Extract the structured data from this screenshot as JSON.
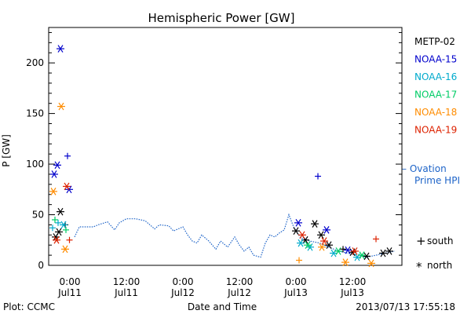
{
  "chart_data": {
    "type": "scatter",
    "title": "Hemispheric Power [GW]",
    "ylabel": "P [GW]",
    "xlabel": "Date and Time",
    "ylim": [
      0,
      235
    ],
    "xlim": [
      "2013-07-10 19:30",
      "2013-07-13 22:30"
    ],
    "yticks": [
      0,
      50,
      100,
      150,
      200
    ],
    "xticks": [
      {
        "t": "2013-07-11 00:00",
        "line1": "0:00",
        "line2": "Jul11"
      },
      {
        "t": "2013-07-11 12:00",
        "line1": "12:00",
        "line2": "Jul11"
      },
      {
        "t": "2013-07-12 00:00",
        "line1": "0:00",
        "line2": "Jul12"
      },
      {
        "t": "2013-07-12 12:00",
        "line1": "12:00",
        "line2": "Jul12"
      },
      {
        "t": "2013-07-13 00:00",
        "line1": "0:00",
        "line2": "Jul13"
      },
      {
        "t": "2013-07-13 12:00",
        "line1": "12:00",
        "line2": "Jul13"
      }
    ],
    "grid": false,
    "legend_position": "right",
    "series": [
      {
        "name": "METP-02",
        "color": "#000000",
        "points": [
          {
            "t": "2013-07-10 21:00",
            "v": 28,
            "m": "north"
          },
          {
            "t": "2013-07-10 21:40",
            "v": 33,
            "m": "north"
          },
          {
            "t": "2013-07-10 22:00",
            "v": 53,
            "m": "north"
          },
          {
            "t": "2013-07-10 23:00",
            "v": 40,
            "m": "south"
          },
          {
            "t": "2013-07-13 00:00",
            "v": 34,
            "m": "north"
          },
          {
            "t": "2013-07-13 02:00",
            "v": 25,
            "m": "north"
          },
          {
            "t": "2013-07-13 04:00",
            "v": 41,
            "m": "north"
          },
          {
            "t": "2013-07-13 05:20",
            "v": 30,
            "m": "north"
          },
          {
            "t": "2013-07-13 07:00",
            "v": 20,
            "m": "north"
          },
          {
            "t": "2013-07-13 10:00",
            "v": 16,
            "m": "south"
          },
          {
            "t": "2013-07-13 12:00",
            "v": 13,
            "m": "north"
          },
          {
            "t": "2013-07-13 15:00",
            "v": 9,
            "m": "north"
          },
          {
            "t": "2013-07-13 18:30",
            "v": 12,
            "m": "north"
          },
          {
            "t": "2013-07-13 19:50",
            "v": 14,
            "m": "north"
          }
        ]
      },
      {
        "name": "NOAA-15",
        "color": "#0000cc",
        "points": [
          {
            "t": "2013-07-10 20:40",
            "v": 90,
            "m": "north"
          },
          {
            "t": "2013-07-10 21:20",
            "v": 99,
            "m": "north"
          },
          {
            "t": "2013-07-10 22:00",
            "v": 214,
            "m": "north"
          },
          {
            "t": "2013-07-10 23:30",
            "v": 108,
            "m": "south"
          },
          {
            "t": "2013-07-10 23:50",
            "v": 75,
            "m": "north"
          },
          {
            "t": "2013-07-13 00:30",
            "v": 42,
            "m": "north"
          },
          {
            "t": "2013-07-13 04:40",
            "v": 88,
            "m": "south"
          },
          {
            "t": "2013-07-13 06:30",
            "v": 35,
            "m": "north"
          },
          {
            "t": "2013-07-13 11:00",
            "v": 15,
            "m": "north"
          }
        ]
      },
      {
        "name": "NOAA-16",
        "color": "#00aacc",
        "points": [
          {
            "t": "2013-07-10 20:20",
            "v": 37,
            "m": "south"
          },
          {
            "t": "2013-07-10 21:30",
            "v": 42,
            "m": "south"
          },
          {
            "t": "2013-07-10 22:40",
            "v": 40,
            "m": "north"
          },
          {
            "t": "2013-07-13 01:00",
            "v": 22,
            "m": "north"
          },
          {
            "t": "2013-07-13 03:00",
            "v": 18,
            "m": "north"
          },
          {
            "t": "2013-07-13 08:00",
            "v": 12,
            "m": "north"
          },
          {
            "t": "2013-07-13 13:00",
            "v": 8,
            "m": "north"
          }
        ]
      },
      {
        "name": "NOAA-17",
        "color": "#00cc66",
        "points": [
          {
            "t": "2013-07-10 20:50",
            "v": 45,
            "m": "south"
          },
          {
            "t": "2013-07-10 23:10",
            "v": 35,
            "m": "south"
          },
          {
            "t": "2013-07-13 02:30",
            "v": 20,
            "m": "north"
          },
          {
            "t": "2013-07-13 09:00",
            "v": 14,
            "m": "north"
          },
          {
            "t": "2013-07-13 14:00",
            "v": 10,
            "m": "north"
          }
        ]
      },
      {
        "name": "NOAA-18",
        "color": "#ff8c00",
        "points": [
          {
            "t": "2013-07-10 20:30",
            "v": 73,
            "m": "north"
          },
          {
            "t": "2013-07-10 22:10",
            "v": 157,
            "m": "north"
          },
          {
            "t": "2013-07-10 23:00",
            "v": 16,
            "m": "north"
          },
          {
            "t": "2013-07-13 00:40",
            "v": 5,
            "m": "south"
          },
          {
            "t": "2013-07-13 05:30",
            "v": 18,
            "m": "north"
          },
          {
            "t": "2013-07-13 10:30",
            "v": 3,
            "m": "north"
          },
          {
            "t": "2013-07-13 16:00",
            "v": 2,
            "m": "north"
          }
        ]
      },
      {
        "name": "NOAA-19",
        "color": "#dd2200",
        "points": [
          {
            "t": "2013-07-10 21:10",
            "v": 25,
            "m": "north"
          },
          {
            "t": "2013-07-10 23:20",
            "v": 78,
            "m": "north"
          },
          {
            "t": "2013-07-10 23:55",
            "v": 25,
            "m": "south"
          },
          {
            "t": "2013-07-13 01:20",
            "v": 30,
            "m": "north"
          },
          {
            "t": "2013-07-13 06:00",
            "v": 24,
            "m": "north"
          },
          {
            "t": "2013-07-13 12:30",
            "v": 14,
            "m": "north"
          },
          {
            "t": "2013-07-13 17:00",
            "v": 26,
            "m": "south"
          }
        ]
      }
    ],
    "ovation": {
      "name": "Ovation Prime HPI",
      "label_line1": "– Ovation",
      "label_line2": "Prime HPI",
      "color": "#1e64c8",
      "points": [
        {
          "t": "2013-07-11 01:00",
          "v": 28
        },
        {
          "t": "2013-07-11 02:00",
          "v": 38
        },
        {
          "t": "2013-07-11 05:00",
          "v": 38
        },
        {
          "t": "2013-07-11 06:00",
          "v": 40
        },
        {
          "t": "2013-07-11 08:00",
          "v": 43
        },
        {
          "t": "2013-07-11 09:30",
          "v": 35
        },
        {
          "t": "2013-07-11 10:30",
          "v": 42
        },
        {
          "t": "2013-07-11 12:00",
          "v": 46
        },
        {
          "t": "2013-07-11 14:00",
          "v": 46
        },
        {
          "t": "2013-07-11 16:00",
          "v": 44
        },
        {
          "t": "2013-07-11 18:00",
          "v": 36
        },
        {
          "t": "2013-07-11 19:00",
          "v": 40
        },
        {
          "t": "2013-07-11 21:00",
          "v": 39
        },
        {
          "t": "2013-07-11 22:00",
          "v": 34
        },
        {
          "t": "2013-07-12 00:00",
          "v": 38
        },
        {
          "t": "2013-07-12 01:00",
          "v": 30
        },
        {
          "t": "2013-07-12 02:00",
          "v": 24
        },
        {
          "t": "2013-07-12 03:00",
          "v": 22
        },
        {
          "t": "2013-07-12 04:00",
          "v": 30
        },
        {
          "t": "2013-07-12 05:30",
          "v": 24
        },
        {
          "t": "2013-07-12 07:00",
          "v": 16
        },
        {
          "t": "2013-07-12 08:00",
          "v": 24
        },
        {
          "t": "2013-07-12 09:30",
          "v": 18
        },
        {
          "t": "2013-07-12 11:00",
          "v": 28
        },
        {
          "t": "2013-07-12 12:00",
          "v": 20
        },
        {
          "t": "2013-07-12 13:00",
          "v": 14
        },
        {
          "t": "2013-07-12 14:00",
          "v": 18
        },
        {
          "t": "2013-07-12 15:00",
          "v": 10
        },
        {
          "t": "2013-07-12 16:30",
          "v": 8
        },
        {
          "t": "2013-07-12 17:30",
          "v": 22
        },
        {
          "t": "2013-07-12 18:30",
          "v": 30
        },
        {
          "t": "2013-07-12 19:30",
          "v": 28
        },
        {
          "t": "2013-07-12 20:30",
          "v": 32
        },
        {
          "t": "2013-07-12 21:30",
          "v": 35
        },
        {
          "t": "2013-07-12 22:30",
          "v": 50
        },
        {
          "t": "2013-07-12 23:30",
          "v": 38
        },
        {
          "t": "2013-07-13 01:00",
          "v": 27
        },
        {
          "t": "2013-07-13 03:00",
          "v": 24
        },
        {
          "t": "2013-07-13 05:00",
          "v": 22
        },
        {
          "t": "2013-07-13 07:00",
          "v": 18
        },
        {
          "t": "2013-07-13 09:00",
          "v": 14
        },
        {
          "t": "2013-07-13 11:00",
          "v": 12
        },
        {
          "t": "2013-07-13 13:00",
          "v": 10
        },
        {
          "t": "2013-07-13 15:00",
          "v": 8
        },
        {
          "t": "2013-07-13 17:00",
          "v": 10
        },
        {
          "t": "2013-07-13 19:00",
          "v": 12
        },
        {
          "t": "2013-07-13 21:00",
          "v": 14
        }
      ]
    },
    "marker_legend": {
      "south": "south",
      "north": "north"
    }
  },
  "footer": {
    "left": "Plot: CCMC",
    "right": "2013/07/13 17:55:18"
  }
}
